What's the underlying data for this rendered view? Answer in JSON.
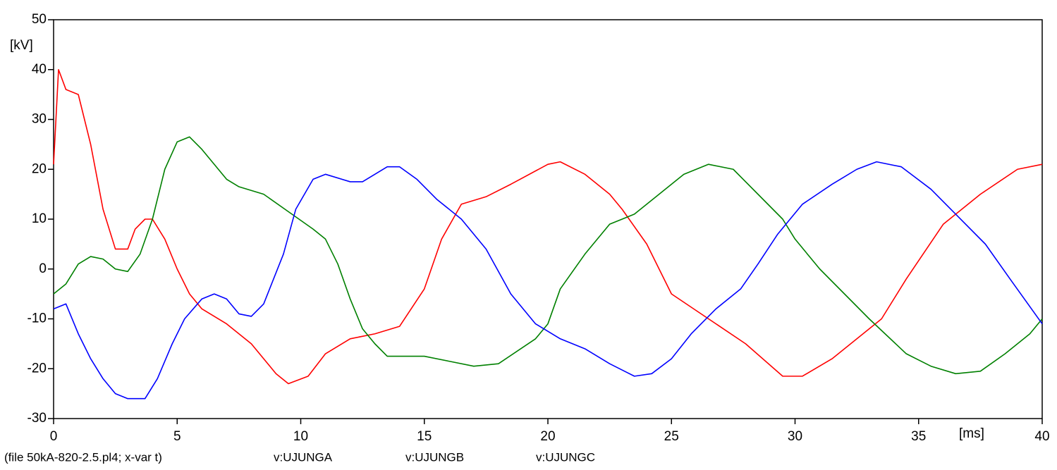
{
  "chart_data": {
    "type": "line",
    "y_unit": "[kV]",
    "x_unit": "[ms]",
    "footer": "(file 50kA-820-2.5.pl4; x-var t)",
    "xlim": [
      0,
      40
    ],
    "xticks": [
      0,
      5,
      10,
      15,
      20,
      25,
      30,
      35,
      40
    ],
    "ylim": [
      -30,
      50
    ],
    "yticks": [
      -30,
      -20,
      -10,
      0,
      10,
      20,
      30,
      40,
      50
    ],
    "series": [
      {
        "name": "v:UJUNGA",
        "color": "#ff0000",
        "x": [
          0,
          0.2,
          0.5,
          1,
          1.5,
          2,
          2.5,
          3,
          3.3,
          3.7,
          4,
          4.5,
          5,
          5.5,
          6,
          7,
          8,
          9,
          9.5,
          10.3,
          11,
          12,
          13,
          14,
          15,
          15.7,
          16.5,
          17.5,
          18.5,
          20,
          20.5,
          21.5,
          22.5,
          23,
          24,
          25,
          26.5,
          28,
          29.5,
          30.3,
          31.5,
          33.5,
          34.5,
          36,
          37.5,
          39,
          40
        ],
        "values": [
          21,
          40,
          36,
          35,
          25,
          12,
          4,
          4,
          8,
          10,
          10,
          6,
          0,
          -5,
          -8,
          -11,
          -15,
          -21,
          -23,
          -21.5,
          -17,
          -14,
          -13,
          -11.5,
          -4,
          6,
          13,
          14.5,
          17,
          21,
          21.5,
          19,
          15,
          12,
          5,
          -5,
          -10,
          -15,
          -21.5,
          -21.5,
          -18,
          -10,
          -2,
          9,
          15,
          20,
          21
        ]
      },
      {
        "name": "v:UJUNGB",
        "color": "#008000",
        "x": [
          0,
          0.5,
          1,
          1.5,
          2,
          2.5,
          3,
          3.5,
          4,
          4.5,
          5,
          5.5,
          6,
          7,
          7.5,
          8.5,
          9.5,
          10.5,
          11,
          11.5,
          12,
          12.5,
          13,
          13.5,
          15,
          16,
          17,
          18,
          19.5,
          20,
          20.5,
          21.5,
          22.5,
          23.5,
          24.5,
          25.5,
          26.5,
          27.5,
          28.5,
          29.5,
          30,
          31,
          32,
          33,
          34.5,
          35.5,
          36.5,
          37.5,
          38.5,
          39.5,
          40
        ],
        "values": [
          -5,
          -3,
          1,
          2.5,
          2,
          0,
          -0.5,
          3,
          10,
          20,
          25.5,
          26.5,
          24,
          18,
          16.5,
          15,
          11.5,
          8,
          6,
          1,
          -6,
          -12,
          -15,
          -17.5,
          -17.5,
          -18.5,
          -19.5,
          -19,
          -14,
          -11,
          -4,
          3,
          9,
          11,
          15,
          19,
          21,
          20,
          15,
          10,
          6,
          0,
          -5,
          -10,
          -17,
          -19.5,
          -21,
          -20.5,
          -17,
          -13,
          -10
        ]
      },
      {
        "name": "v:UJUNGC",
        "color": "#0000ff",
        "x": [
          0,
          0.5,
          1,
          1.5,
          2,
          2.5,
          3,
          3.7,
          4.2,
          4.8,
          5.3,
          6,
          6.5,
          7,
          7.5,
          8,
          8.5,
          9.3,
          9.8,
          10.5,
          11,
          12,
          12.5,
          13.5,
          14,
          14.7,
          15.5,
          16.5,
          17.5,
          18.5,
          19.5,
          20.5,
          21.5,
          22.5,
          23.5,
          24.2,
          25,
          25.8,
          26.8,
          27.8,
          28.5,
          29.3,
          30.3,
          31.5,
          32.5,
          33.3,
          34.3,
          35.5,
          36.5,
          37.7,
          38.7,
          40
        ],
        "values": [
          -8,
          -7,
          -13,
          -18,
          -22,
          -25,
          -26,
          -26,
          -22,
          -15,
          -10,
          -6,
          -5,
          -6,
          -9,
          -9.5,
          -7,
          3,
          12,
          18,
          19,
          17.5,
          17.5,
          20.5,
          20.5,
          18,
          14,
          10,
          4,
          -5,
          -11,
          -14,
          -16,
          -19,
          -21.5,
          -21,
          -18,
          -13,
          -8,
          -4,
          1,
          7,
          13,
          17,
          20,
          21.5,
          20.5,
          16,
          11,
          5,
          -2,
          -11
        ]
      }
    ]
  }
}
